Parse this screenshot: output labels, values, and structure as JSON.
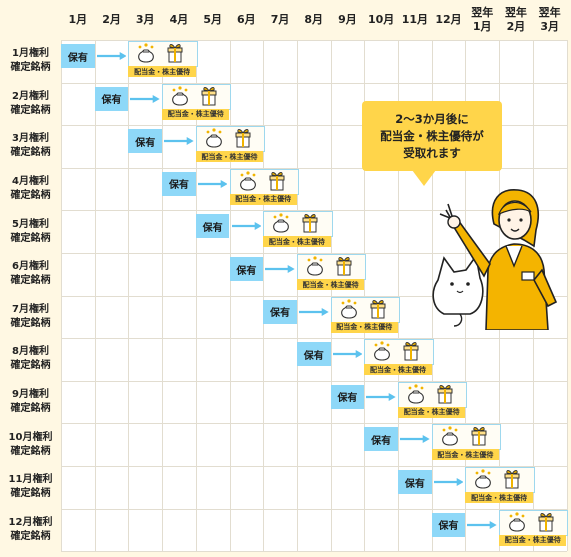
{
  "months": [
    "1月",
    "2月",
    "3月",
    "4月",
    "5月",
    "6月",
    "7月",
    "8月",
    "9月",
    "10月",
    "11月",
    "12月",
    "翌年\n1月",
    "翌年\n2月",
    "翌年\n3月"
  ],
  "rows": [
    {
      "label": "1月権利\n確定銘柄"
    },
    {
      "label": "2月権利\n確定銘柄"
    },
    {
      "label": "3月権利\n確定銘柄"
    },
    {
      "label": "4月権利\n確定銘柄"
    },
    {
      "label": "5月権利\n確定銘柄"
    },
    {
      "label": "6月権利\n確定銘柄"
    },
    {
      "label": "7月権利\n確定銘柄"
    },
    {
      "label": "8月権利\n確定銘柄"
    },
    {
      "label": "9月権利\n確定銘柄"
    },
    {
      "label": "10月権利\n確定銘柄"
    },
    {
      "label": "11月権利\n確定銘柄"
    },
    {
      "label": "12月権利\n確定銘柄"
    }
  ],
  "hold_label": "保有",
  "reward_label": "配当金・株主優待",
  "callout": "2～3か月後に\n配当金・株主優待が\n受取れます",
  "icons": [
    "money-bag-icon",
    "gift-box-icon",
    "arrow-right-icon",
    "staff-illustration",
    "cat-illustration"
  ],
  "colors": {
    "hold": "#8ed8f8",
    "reward_label": "#ffd54a",
    "arrow": "#5cc2ee",
    "callout": "#ffd54a",
    "background": "#fff8e3"
  }
}
